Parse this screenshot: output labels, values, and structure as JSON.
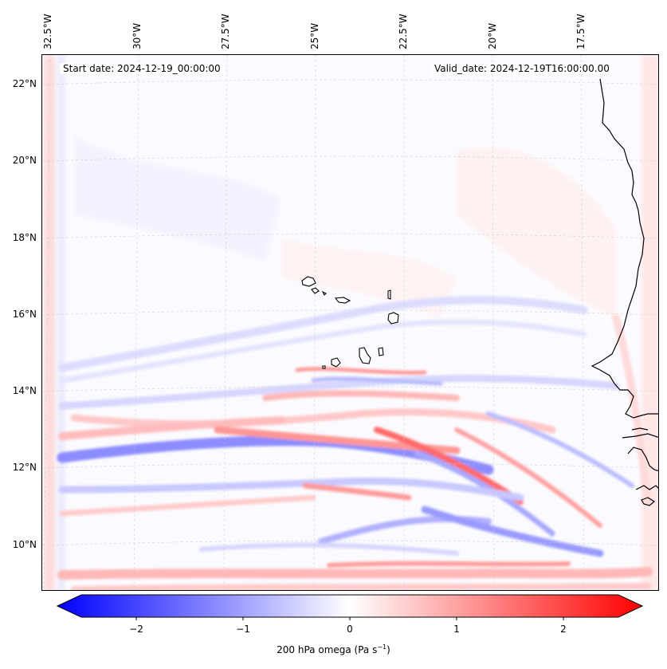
{
  "header": {
    "start_date": "Start date: 2024-12-19_00:00:00",
    "valid_date": "Valid_date: 2024-12-19T16:00:00.00"
  },
  "longitude_labels": [
    "32.5°W",
    "30°W",
    "27.5°W",
    "25°W",
    "22.5°W",
    "20°W",
    "17.5°W"
  ],
  "latitude_labels": [
    "22°N",
    "20°N",
    "18°N",
    "16°N",
    "14°N",
    "12°N",
    "10°N"
  ],
  "colorbar": {
    "ticks": [
      "−2",
      "−1",
      "0",
      "1",
      "2"
    ],
    "label_main": "200 hPa omega (Pa s",
    "label_sup": "−1",
    "label_end": ")",
    "vmin": -2.7,
    "vmax": 2.7,
    "colors": {
      "negative": "#0000ff",
      "zero": "#ffffff",
      "positive": "#ff0000"
    }
  }
}
